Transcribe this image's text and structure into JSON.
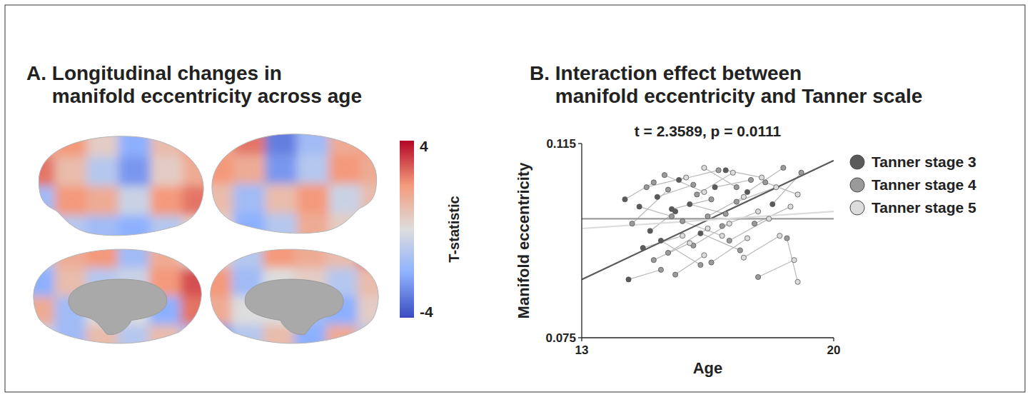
{
  "chart_data": [
    {
      "type": "heatmap",
      "title": "A. Longitudinal changes in\nmanifold eccentricity across age",
      "cells": [
        [
          [
            1.5,
            2.0,
            0.5,
            -2.0,
            1.0,
            2.0
          ],
          [
            2.5,
            1.0,
            -1.0,
            -2.5,
            0.5,
            1.5
          ],
          [
            -1.5,
            2.0,
            1.5,
            -0.5,
            2.0,
            2.5
          ],
          [
            -0.5,
            -1.0,
            -1.5,
            -2.0,
            -1.0,
            0.5
          ]
        ],
        [
          [
            1.5,
            2.5,
            -3.0,
            -1.5,
            1.5,
            2.0
          ],
          [
            2.0,
            1.5,
            -2.5,
            -1.0,
            2.0,
            1.5
          ],
          [
            1.0,
            -1.5,
            1.0,
            2.0,
            -0.5,
            1.0
          ],
          [
            0.5,
            -2.0,
            -1.0,
            1.5,
            0.5,
            -0.5
          ]
        ],
        [
          [
            -1.0,
            1.5,
            2.0,
            -1.5,
            1.5,
            0.5
          ],
          [
            -2.0,
            1.0,
            -1.0,
            -0.5,
            2.0,
            3.0
          ],
          [
            1.5,
            -1.5,
            0,
            0,
            -2.0,
            2.5
          ],
          [
            -0.5,
            -1.5,
            1.0,
            -1.0,
            1.0,
            -1.5
          ]
        ],
        [
          [
            0.5,
            -1.0,
            2.0,
            1.5,
            1.0,
            2.5
          ],
          [
            2.0,
            -1.5,
            0,
            0.5,
            -1.0,
            1.0
          ],
          [
            1.5,
            0,
            0,
            -1.5,
            -2.0,
            0.5
          ],
          [
            -2.5,
            -1.0,
            1.0,
            -2.0,
            1.5,
            -1.0
          ]
        ]
      ],
      "colorbar": {
        "label": "T-statistic",
        "range": [
          -4,
          4
        ],
        "ticks": [
          4,
          -4
        ]
      }
    },
    {
      "type": "scatter",
      "title": "B. Interaction effect between\nmanifold eccentricity and Tanner scale",
      "annotation": "t = 2.3589, p = 0.0111",
      "x_label": "Age",
      "y_label": "Manifold eccentricity",
      "xlim": [
        13,
        20
      ],
      "xticks": [
        13,
        20
      ],
      "ylim": [
        0.075,
        0.115
      ],
      "yticks": [
        0.075,
        0.115
      ],
      "legend": "right",
      "marker": "circle",
      "series": [
        {
          "name": "Tanner stage 3",
          "color": "#5a5a5a",
          "x": [
            14.2,
            14.3,
            14.6,
            14.7,
            14.9,
            15.6,
            15.1,
            15.2,
            15.5,
            15.7,
            16.0,
            16.3,
            16.7,
            17.0,
            17.6,
            18.3
          ],
          "values": [
            0.1035,
            0.087,
            0.102,
            0.0935,
            0.097,
            0.101,
            0.104,
            0.095,
            0.1015,
            0.1075,
            0.1025,
            0.0965,
            0.106,
            0.1095,
            0.105,
            0.1025
          ],
          "fit": {
            "x": [
              13,
              20
            ],
            "values": [
              0.087,
              0.1115
            ]
          }
        },
        {
          "name": "Tanner stage 4",
          "color": "#9a9a9a",
          "x": [
            15.0,
            15.2,
            14.4,
            15.4,
            15.5,
            14.8,
            15.0,
            16.1,
            16.3,
            15.3,
            15.4,
            16.6,
            15.6,
            16.8,
            15.8,
            17.0,
            16.1,
            16.2,
            17.4,
            16.5,
            16.6,
            17.7,
            16.9,
            17.1,
            17.3,
            18.6,
            17.8,
            17.9,
            18.1,
            19.1,
            17.3,
            18.7
          ],
          "values": [
            0.107,
            0.089,
            0.0985,
            0.1055,
            0.1,
            0.106,
            0.091,
            0.1065,
            0.09,
            0.1085,
            0.0925,
            0.1035,
            0.088,
            0.1095,
            0.099,
            0.1005,
            0.094,
            0.1045,
            0.093,
            0.1,
            0.0905,
            0.1075,
            0.098,
            0.095,
            0.103,
            0.11,
            0.0985,
            0.0875,
            0.107,
            0.109,
            0.106,
            0.0955
          ],
          "fit": {
            "x": [
              13,
              20
            ],
            "values": [
              0.0995,
              0.0995
            ]
          }
        },
        {
          "name": "Tanner stage 5",
          "color": "#dcdcdc",
          "x": [
            15.8,
            15.9,
            16.0,
            16.4,
            16.5,
            16.4,
            16.9,
            17.1,
            17.2,
            17.5,
            17.6,
            17.9,
            18.0,
            18.2,
            18.4,
            17.5,
            18.5,
            18.8,
            18.9,
            19.0,
            16.4,
            19.0
          ],
          "values": [
            0.096,
            0.108,
            0.0945,
            0.105,
            0.0975,
            0.092,
            0.096,
            0.0985,
            0.109,
            0.104,
            0.0955,
            0.101,
            0.108,
            0.0995,
            0.106,
            0.0915,
            0.096,
            0.102,
            0.091,
            0.1045,
            0.11,
            0.0865
          ],
          "fit": {
            "x": [
              13,
              20
            ],
            "values": [
              0.0975,
              0.101
            ]
          }
        }
      ],
      "links": [
        {
          "x": [
            14.2,
            15.0
          ],
          "y": [
            0.1035,
            0.107
          ]
        },
        {
          "x": [
            14.3,
            15.2
          ],
          "y": [
            0.087,
            0.089
          ]
        },
        {
          "x": [
            14.4,
            15.4
          ],
          "y": [
            0.0985,
            0.1055
          ]
        },
        {
          "x": [
            14.6,
            15.5
          ],
          "y": [
            0.102,
            0.1
          ]
        },
        {
          "x": [
            14.7,
            15.8
          ],
          "y": [
            0.0935,
            0.096
          ]
        },
        {
          "x": [
            14.8,
            15.9
          ],
          "y": [
            0.106,
            0.108
          ]
        },
        {
          "x": [
            14.9,
            15.6
          ],
          "y": [
            0.097,
            0.101
          ]
        },
        {
          "x": [
            15.0,
            16.0
          ],
          "y": [
            0.091,
            0.0945
          ]
        },
        {
          "x": [
            15.1,
            16.1
          ],
          "y": [
            0.104,
            0.1065
          ]
        },
        {
          "x": [
            15.2,
            16.3
          ],
          "y": [
            0.095,
            0.09
          ]
        },
        {
          "x": [
            15.3,
            16.4
          ],
          "y": [
            0.1085,
            0.105
          ]
        },
        {
          "x": [
            15.4,
            16.5
          ],
          "y": [
            0.0925,
            0.0975
          ]
        },
        {
          "x": [
            15.5,
            16.6
          ],
          "y": [
            0.1015,
            0.1035
          ]
        },
        {
          "x": [
            15.6,
            16.4
          ],
          "y": [
            0.088,
            0.092
          ]
        },
        {
          "x": [
            15.7,
            16.8
          ],
          "y": [
            0.1075,
            0.1095
          ]
        },
        {
          "x": [
            15.8,
            16.9
          ],
          "y": [
            0.099,
            0.096
          ]
        },
        {
          "x": [
            16.0,
            17.0
          ],
          "y": [
            0.1025,
            0.1005
          ]
        },
        {
          "x": [
            16.1,
            17.1
          ],
          "y": [
            0.094,
            0.0985
          ]
        },
        {
          "x": [
            16.2,
            17.2
          ],
          "y": [
            0.1045,
            0.109
          ]
        },
        {
          "x": [
            16.3,
            17.4
          ],
          "y": [
            0.0965,
            0.093
          ]
        },
        {
          "x": [
            16.5,
            17.5
          ],
          "y": [
            0.1,
            0.104
          ]
        },
        {
          "x": [
            16.6,
            17.6
          ],
          "y": [
            0.0905,
            0.0955
          ]
        },
        {
          "x": [
            16.7,
            17.7
          ],
          "y": [
            0.106,
            0.1075
          ]
        },
        {
          "x": [
            16.9,
            17.9
          ],
          "y": [
            0.098,
            0.101
          ]
        },
        {
          "x": [
            17.0,
            18.0
          ],
          "y": [
            0.1095,
            0.108
          ]
        },
        {
          "x": [
            17.1,
            18.2
          ],
          "y": [
            0.095,
            0.0995
          ]
        },
        {
          "x": [
            17.3,
            18.4
          ],
          "y": [
            0.103,
            0.106
          ]
        },
        {
          "x": [
            17.5,
            18.5
          ],
          "y": [
            0.0915,
            0.096
          ]
        },
        {
          "x": [
            17.6,
            18.6
          ],
          "y": [
            0.105,
            0.11
          ]
        },
        {
          "x": [
            17.8,
            18.8
          ],
          "y": [
            0.0985,
            0.102
          ]
        },
        {
          "x": [
            17.9,
            18.9
          ],
          "y": [
            0.0875,
            0.091
          ]
        },
        {
          "x": [
            18.1,
            19.0
          ],
          "y": [
            0.107,
            0.1045
          ]
        },
        {
          "x": [
            18.3,
            19.1
          ],
          "y": [
            0.1025,
            0.109
          ]
        },
        {
          "x": [
            16.4,
            17.3
          ],
          "y": [
            0.11,
            0.106
          ]
        },
        {
          "x": [
            18.7,
            19.0
          ],
          "y": [
            0.0955,
            0.0865
          ]
        }
      ]
    }
  ]
}
